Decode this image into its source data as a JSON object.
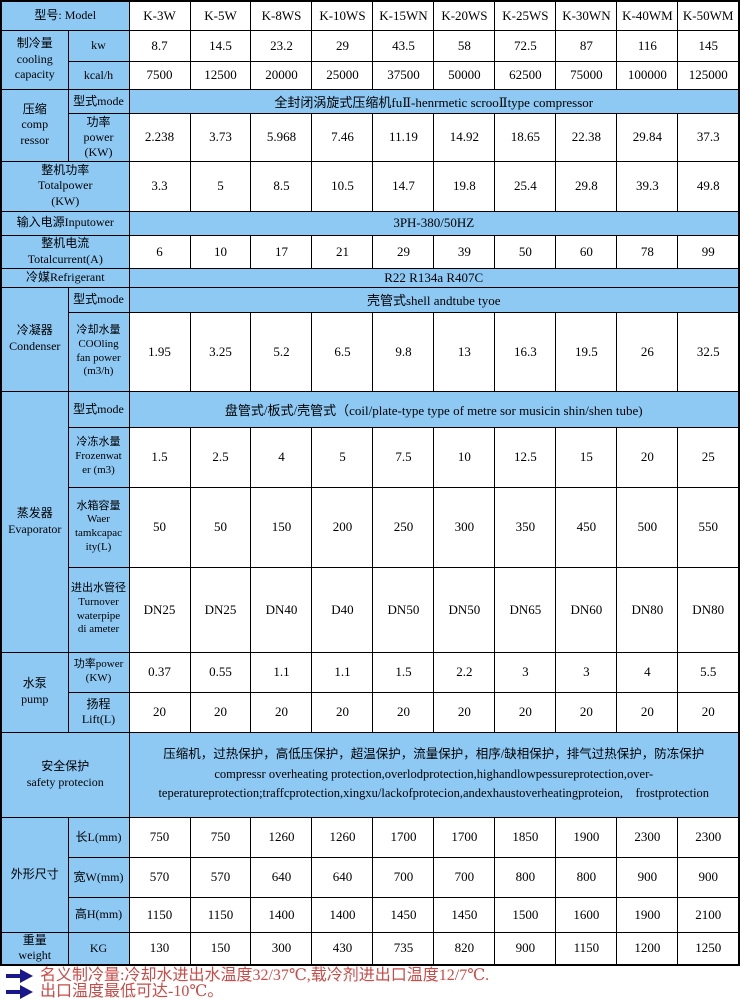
{
  "colors": {
    "header_blue": "#8ec9f4",
    "border_black": "#000000",
    "note_red": "#c94b47",
    "arrow_navy": "#18188c"
  },
  "table": {
    "model_label": "型号: Model",
    "models": [
      "K-3W",
      "K-5W",
      "K-8WS",
      "K-10WS",
      "K-15WN",
      "K-20WS",
      "K-25WS",
      "K-30WN",
      "K-40WM",
      "K-50WM"
    ],
    "cooling": {
      "group": "制冷量\ncooling\ncapacity",
      "kw_label": "kw",
      "kw": [
        "8.7",
        "14.5",
        "23.2",
        "29",
        "43.5",
        "58",
        "72.5",
        "87",
        "116",
        "145"
      ],
      "kcalh_label": "kcal/h",
      "kcalh": [
        "7500",
        "12500",
        "20000",
        "25000",
        "37500",
        "50000",
        "62500",
        "75000",
        "100000",
        "125000"
      ]
    },
    "compressor": {
      "group": "压缩\ncomp\nressor",
      "mode_label": "型式mode",
      "mode": "全封闭涡旋式压缩机fuⅡ-henrmetic scrooⅡtype compressor",
      "power_label": "功率\npower\n(KW)",
      "power": [
        "2.238",
        "3.73",
        "5.968",
        "7.46",
        "11.19",
        "14.92",
        "18.65",
        "22.38",
        "29.84",
        "37.3"
      ]
    },
    "total_power": {
      "label": "整机功率\nTotalpower\n(KW)",
      "values": [
        "3.3",
        "5",
        "8.5",
        "10.5",
        "14.7",
        "19.8",
        "25.4",
        "29.8",
        "39.3",
        "49.8"
      ]
    },
    "input_power": {
      "label": "输入电源Inputower",
      "value": "3PH-380/50HZ"
    },
    "total_current": {
      "label": "整机电流\nTotalcurrent(A)",
      "values": [
        "6",
        "10",
        "17",
        "21",
        "29",
        "39",
        "50",
        "60",
        "78",
        "99"
      ]
    },
    "refrigerant": {
      "label": "冷媒Refrigerant",
      "value": "R22 R134a R407C"
    },
    "condenser": {
      "group": "冷凝器\nCondenser",
      "mode_label": "型式mode",
      "mode": "壳管式shell andtube tyoe",
      "water_label": "冷却水量\nCOOling\nfan power\n(m3/h)",
      "water": [
        "1.95",
        "3.25",
        "5.2",
        "6.5",
        "9.8",
        "13",
        "16.3",
        "19.5",
        "26",
        "32.5"
      ]
    },
    "evaporator": {
      "group": "蒸发器\nEvaporator",
      "mode_label": "型式mode",
      "mode": "盘管式/板式/壳管式（coil/plate-type type of metre sor musicin shin/shen tube)",
      "frozen_label": "冷冻水量\nFrozenwat\ner (m3)",
      "frozen": [
        "1.5",
        "2.5",
        "4",
        "5",
        "7.5",
        "10",
        "12.5",
        "15",
        "20",
        "25"
      ],
      "tank_label": "水箱容量\nWaer\ntamkcapac\nity(L)",
      "tank": [
        "50",
        "50",
        "150",
        "200",
        "250",
        "300",
        "350",
        "450",
        "500",
        "550"
      ],
      "pipe_label": "进出水管径\nTurnover\nwaterpipe\ndi ameter",
      "pipe": [
        "DN25",
        "DN25",
        "DN40",
        "D40",
        "DN50",
        "DN50",
        "DN65",
        "DN60",
        "DN80",
        "DN80"
      ]
    },
    "pump": {
      "group": "水泵\npump",
      "power_label": "功率power\n(KW)",
      "power": [
        "0.37",
        "0.55",
        "1.1",
        "1.1",
        "1.5",
        "2.2",
        "3",
        "3",
        "4",
        "5.5"
      ],
      "lift_label": "扬程\nLift(L)",
      "lift": [
        "20",
        "20",
        "20",
        "20",
        "20",
        "20",
        "20",
        "20",
        "20",
        "20"
      ]
    },
    "safety": {
      "label": "安全保护\nsafety protecion",
      "text_cn": "压缩机，过热保护，高低压保护，超温保护，流量保护，相序/缺相保护，排气过热保护，防冻保护",
      "text_en": "compressr overheating protection,overlodprotection,highandlowpessureprotection,over-teperatureprotection;traffcprotection,xingxu/lackofprotecion,andexhaustoverheatingproteion,　frostprotection"
    },
    "dimensions": {
      "group": "外形尺寸",
      "length_label": "长L(mm)",
      "length": [
        "750",
        "750",
        "1260",
        "1260",
        "1700",
        "1700",
        "1850",
        "1900",
        "2300",
        "2300"
      ],
      "width_label": "宽W(mm)",
      "width": [
        "570",
        "570",
        "640",
        "640",
        "700",
        "700",
        "800",
        "800",
        "900",
        "900"
      ],
      "height_label": "高H(mm)",
      "height": [
        "1150",
        "1150",
        "1400",
        "1400",
        "1450",
        "1450",
        "1500",
        "1600",
        "1900",
        "2100"
      ]
    },
    "weight": {
      "group": "重量\nweight",
      "unit_label": "KG",
      "values": [
        "130",
        "150",
        "300",
        "430",
        "735",
        "820",
        "900",
        "1150",
        "1200",
        "1250"
      ]
    }
  },
  "notes": [
    {
      "text": "名义制冷量:冷却水进出水温度32/37℃,载冷剂进出口温度12/7℃."
    },
    {
      "text": "出口温度最低可达-10℃。"
    }
  ]
}
